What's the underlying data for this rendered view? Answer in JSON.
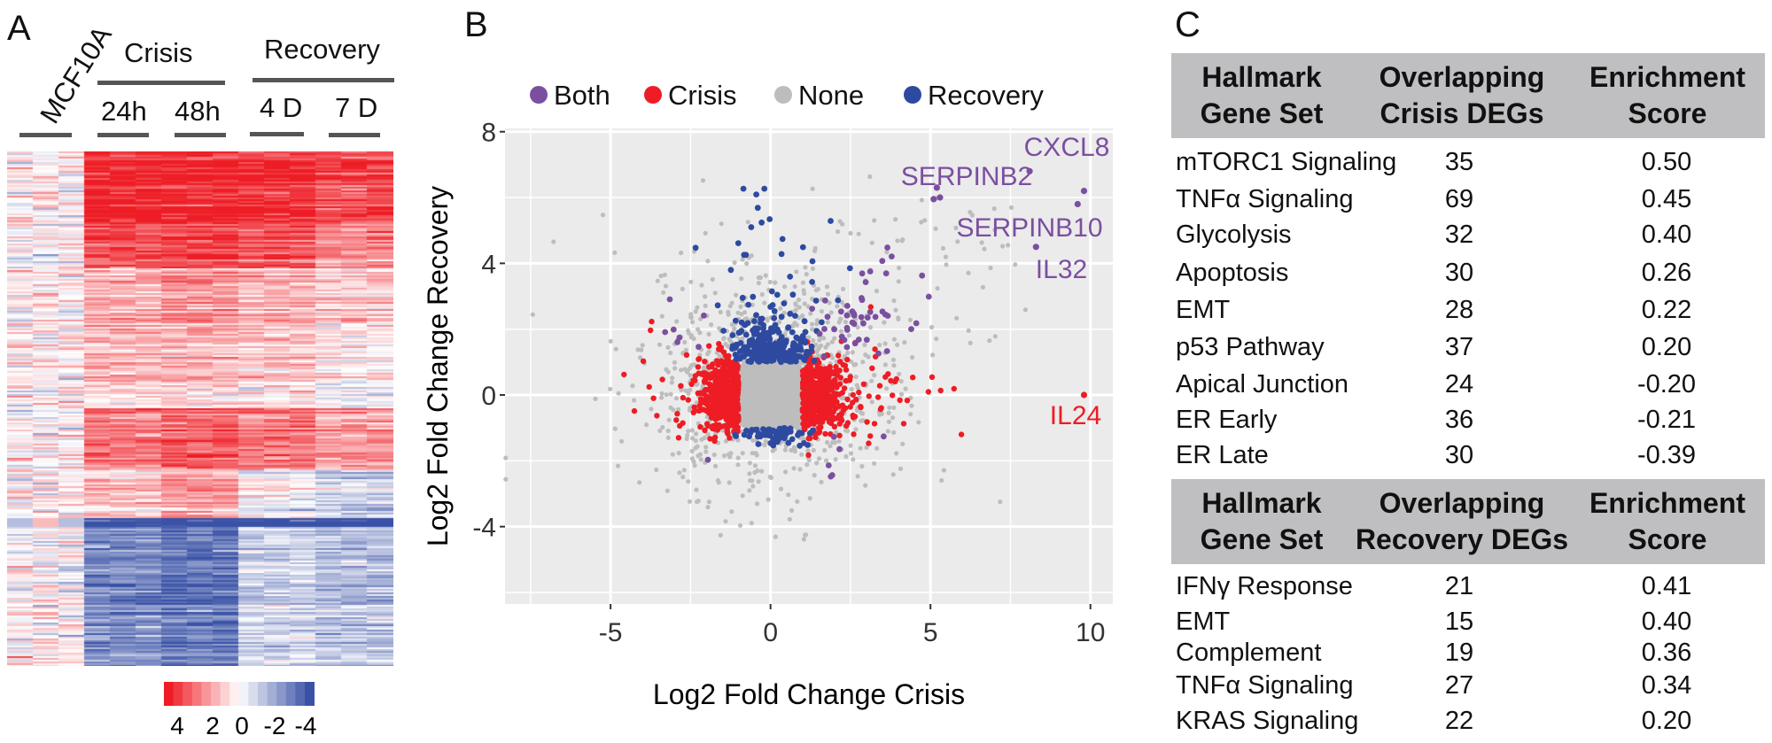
{
  "panels": {
    "a": "A",
    "b": "B",
    "c": "C"
  },
  "chart_data": [
    {
      "type": "heatmap",
      "row_label": "MCF10A",
      "groups": [
        {
          "label": "Crisis",
          "subgroups": [
            "24h",
            "48h"
          ]
        },
        {
          "label": "Recovery",
          "subgroups": [
            "4 D",
            "7 D"
          ]
        }
      ],
      "columns_per_condition": 3,
      "colorbar": {
        "ticks": [
          "4",
          "2",
          "0",
          "-2",
          "-4"
        ],
        "range": [
          4,
          -4
        ],
        "high_color": "#ee1c24",
        "mid_color": "#ffffff",
        "low_color": "#3a52a6"
      }
    },
    {
      "type": "scatter",
      "xlabel": "Log2 Fold Change Crisis",
      "ylabel": "Log2 Fold Change Recovery",
      "xlim": [
        -8.3,
        10.7
      ],
      "ylim": [
        -6.35,
        8.1
      ],
      "xticks": [
        "-5",
        "0",
        "5",
        "10"
      ],
      "yticks": [
        "-4",
        "0",
        "4",
        "8"
      ],
      "grid": true,
      "legend_position": "top",
      "legend": [
        {
          "label": "Both",
          "color": "#7b4fa0"
        },
        {
          "label": "Crisis",
          "color": "#ee1c24"
        },
        {
          "label": "None",
          "color": "#bdbdbd"
        },
        {
          "label": "Recovery",
          "color": "#2e4aa0"
        }
      ],
      "labeled_genes": [
        {
          "label": "CXCL8",
          "x": 8.1,
          "y": 6.8,
          "category": "Both"
        },
        {
          "label": "SERPINB2",
          "x": 5.2,
          "y": 6.3,
          "category": "Both"
        },
        {
          "label": "SERPINB10",
          "x": 9.6,
          "y": 5.8,
          "category": "Both"
        },
        {
          "label": "IL32",
          "x": 8.3,
          "y": 4.5,
          "category": "Both"
        },
        {
          "label": "IL24",
          "x": 9.8,
          "y": 0.0,
          "category": "Crisis"
        }
      ]
    },
    {
      "type": "table",
      "tables": [
        {
          "headers": [
            "Hallmark\nGene Set",
            "Overlapping\nCrisis DEGs",
            "Enrichment\nScore"
          ],
          "rows": [
            [
              "mTORC1 Signaling",
              "35",
              "0.50"
            ],
            [
              "TNFα Signaling",
              "69",
              "0.45"
            ],
            [
              "Glycolysis",
              "32",
              "0.40"
            ],
            [
              "Apoptosis",
              "30",
              "0.26"
            ],
            [
              "EMT",
              "28",
              "0.22"
            ],
            [
              "p53 Pathway",
              "37",
              "0.20"
            ],
            [
              "Apical Junction",
              "24",
              "-0.20"
            ],
            [
              "ER Early",
              "36",
              "-0.21"
            ],
            [
              "ER Late",
              "30",
              "-0.39"
            ]
          ]
        },
        {
          "headers": [
            "Hallmark\nGene Set",
            "Overlapping\nRecovery DEGs",
            "Enrichment\nScore"
          ],
          "rows": [
            [
              "IFNγ Response",
              "21",
              "0.41"
            ],
            [
              "EMT",
              "15",
              "0.40"
            ],
            [
              "Complement",
              "19",
              "0.36"
            ],
            [
              "TNFα Signaling",
              "27",
              "0.34"
            ],
            [
              "KRAS Signaling",
              "22",
              "0.20"
            ]
          ]
        }
      ]
    }
  ]
}
